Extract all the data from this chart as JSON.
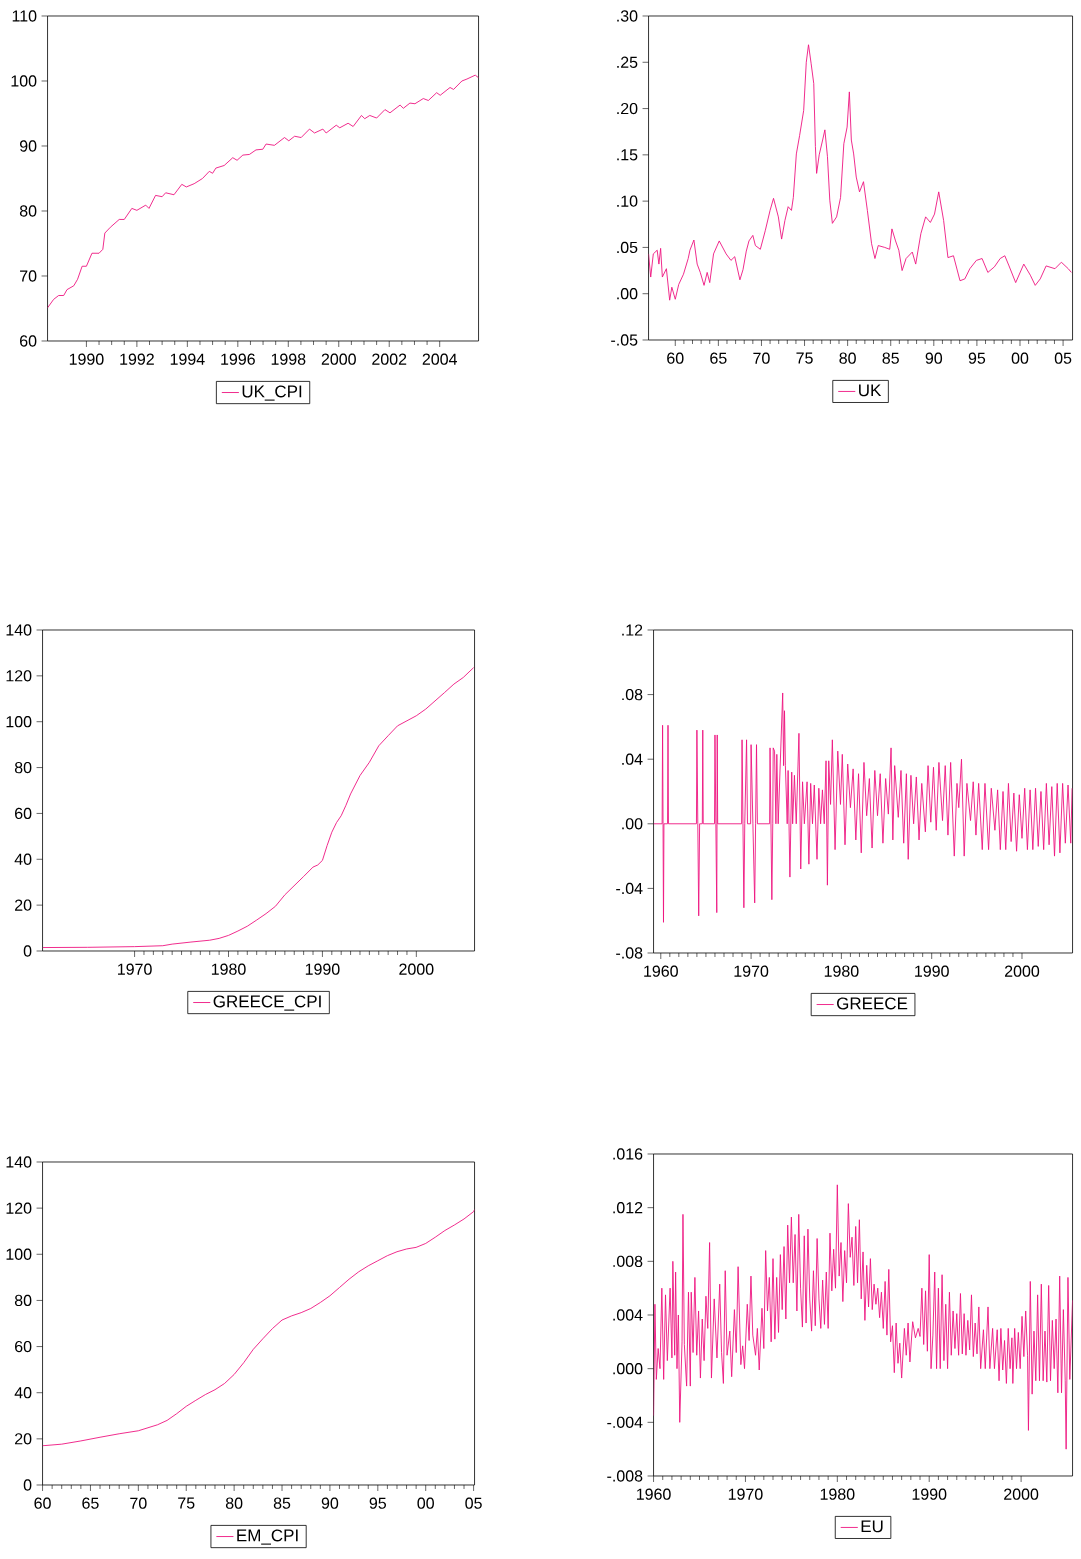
{
  "chart_data": [
    {
      "type": "line",
      "legend": "bottom",
      "line_style": "solid",
      "xlim": [
        1988.46,
        2005.54
      ],
      "xticks": [
        1990,
        1992,
        1994,
        1996,
        1998,
        2000,
        2002,
        2004
      ],
      "ylim": [
        60,
        110
      ],
      "yticks": [
        60,
        70,
        80,
        90,
        100,
        110
      ],
      "series": [
        {
          "name": "UK_CPI",
          "color": "#ee1580",
          "x": [
            1988.46,
            1988.7,
            1988.9,
            1989.1,
            1989.23,
            1989.5,
            1989.65,
            1989.83,
            1990.0,
            1990.22,
            1990.5,
            1990.65,
            1990.73,
            1990.95,
            1991.3,
            1991.5,
            1991.8,
            1992.0,
            1992.35,
            1992.48,
            1992.74,
            1993.0,
            1993.14,
            1993.47,
            1993.78,
            1993.96,
            1994.27,
            1994.6,
            1994.87,
            1995.0,
            1995.13,
            1995.46,
            1995.8,
            1995.97,
            1996.2,
            1996.46,
            1996.72,
            1996.99,
            1997.12,
            1997.45,
            1997.85,
            1998.02,
            1998.25,
            1998.51,
            1998.84,
            1999.04,
            1999.37,
            1999.5,
            1999.9,
            2000.04,
            2000.37,
            2000.57,
            2000.9,
            2001.03,
            2001.23,
            2001.5,
            2001.83,
            2002.03,
            2002.43,
            2002.56,
            2002.82,
            2003.02,
            2003.35,
            2003.55,
            2003.88,
            2004.02,
            2004.41,
            2004.55,
            2004.88,
            2005.08,
            2005.41,
            2005.54
          ],
          "values": [
            65.1,
            66.4,
            67.0,
            67.0,
            67.9,
            68.5,
            69.5,
            71.5,
            71.5,
            73.5,
            73.5,
            74.1,
            76.6,
            77.5,
            78.7,
            78.7,
            80.4,
            80.1,
            80.9,
            80.4,
            82.4,
            82.2,
            82.8,
            82.5,
            84.1,
            83.7,
            84.2,
            85.0,
            86.1,
            85.8,
            86.6,
            87.0,
            88.2,
            87.8,
            88.6,
            88.7,
            89.4,
            89.5,
            90.3,
            90.1,
            91.3,
            90.8,
            91.5,
            91.3,
            92.6,
            92.0,
            92.6,
            92.0,
            93.2,
            92.8,
            93.5,
            93.0,
            94.7,
            94.2,
            94.7,
            94.3,
            95.6,
            95.1,
            96.3,
            95.8,
            96.6,
            96.5,
            97.3,
            97.0,
            98.2,
            97.8,
            99.0,
            98.7,
            100.0,
            100.3,
            100.9,
            100.5
          ]
        }
      ]
    },
    {
      "type": "line",
      "legend": "bottom",
      "line_style": "solid",
      "xlim": [
        1956.9,
        2006.1
      ],
      "xticks": [
        {
          "value": 1960,
          "label": "60"
        },
        {
          "value": 1965,
          "label": "65"
        },
        {
          "value": 1970,
          "label": "70"
        },
        {
          "value": 1975,
          "label": "75"
        },
        {
          "value": 1980,
          "label": "80"
        },
        {
          "value": 1985,
          "label": "85"
        },
        {
          "value": 1990,
          "label": "90"
        },
        {
          "value": 1995,
          "label": "95"
        },
        {
          "value": 2000,
          "label": "00"
        },
        {
          "value": 2005,
          "label": "05"
        }
      ],
      "ylim": [
        -0.05,
        0.3
      ],
      "yticks": [
        {
          "value": -0.05,
          "label": "-.05"
        },
        {
          "value": 0,
          "label": ".00"
        },
        {
          "value": 0.05,
          "label": ".05"
        },
        {
          "value": 0.1,
          "label": ".10"
        },
        {
          "value": 0.15,
          "label": ".15"
        },
        {
          "value": 0.2,
          "label": ".20"
        },
        {
          "value": 0.25,
          "label": ".25"
        },
        {
          "value": 0.3,
          "label": ".30"
        }
      ],
      "series": [
        {
          "name": "UK",
          "color": "#ee1580",
          "x": [
            1956.9,
            1957.15,
            1957.45,
            1957.9,
            1958.1,
            1958.3,
            1958.5,
            1958.97,
            1959.35,
            1959.6,
            1960.0,
            1960.4,
            1960.95,
            1961.5,
            1961.7,
            1962.16,
            1962.54,
            1962.9,
            1963.34,
            1963.7,
            1964.0,
            1964.44,
            1965.1,
            1965.9,
            1966.46,
            1966.9,
            1967.5,
            1967.86,
            1968.24,
            1968.55,
            1969.0,
            1969.3,
            1969.87,
            1970.44,
            1971.0,
            1971.4,
            1971.96,
            1972.34,
            1972.72,
            1973.1,
            1973.48,
            1973.7,
            1974.05,
            1974.43,
            1974.9,
            1975.2,
            1975.46,
            1975.76,
            1976.07,
            1976.26,
            1976.4,
            1976.7,
            1977.1,
            1977.36,
            1977.66,
            1977.93,
            1978.23,
            1978.72,
            1979.18,
            1979.56,
            1979.94,
            1980.2,
            1980.43,
            1980.7,
            1981.0,
            1981.38,
            1981.84,
            1982.29,
            1982.78,
            1983.17,
            1983.55,
            1984.3,
            1984.88,
            1985.14,
            1985.56,
            1985.94,
            1986.32,
            1986.78,
            1987.5,
            1987.9,
            1988.5,
            1989.05,
            1989.6,
            1990.08,
            1990.57,
            1991.14,
            1991.64,
            1992.28,
            1993.04,
            1993.6,
            1994.18,
            1994.94,
            1995.6,
            1996.27,
            1997.03,
            1997.7,
            1998.24,
            1998.73,
            1999.5,
            2000.44,
            2001.2,
            2001.77,
            2002.35,
            2003.03,
            2004.06,
            2004.8,
            2005.6,
            2005.96
          ],
          "values": [
            0.043,
            0.018,
            0.043,
            0.047,
            0.032,
            0.049,
            0.018,
            0.027,
            -0.007,
            0.007,
            -0.006,
            0.01,
            0.021,
            0.038,
            0.047,
            0.058,
            0.032,
            0.023,
            0.009,
            0.023,
            0.012,
            0.043,
            0.057,
            0.043,
            0.036,
            0.04,
            0.015,
            0.026,
            0.046,
            0.057,
            0.063,
            0.052,
            0.048,
            0.068,
            0.09,
            0.103,
            0.083,
            0.059,
            0.079,
            0.094,
            0.09,
            0.104,
            0.151,
            0.171,
            0.198,
            0.25,
            0.269,
            0.249,
            0.227,
            0.159,
            0.13,
            0.15,
            0.166,
            0.177,
            0.148,
            0.101,
            0.076,
            0.083,
            0.104,
            0.162,
            0.18,
            0.218,
            0.166,
            0.151,
            0.126,
            0.11,
            0.121,
            0.09,
            0.054,
            0.038,
            0.052,
            0.05,
            0.048,
            0.07,
            0.057,
            0.047,
            0.025,
            0.038,
            0.045,
            0.032,
            0.065,
            0.083,
            0.077,
            0.086,
            0.11,
            0.079,
            0.039,
            0.041,
            0.014,
            0.016,
            0.027,
            0.036,
            0.038,
            0.023,
            0.029,
            0.038,
            0.041,
            0.03,
            0.012,
            0.032,
            0.02,
            0.009,
            0.016,
            0.03,
            0.027,
            0.034,
            0.027,
            0.023
          ]
        }
      ]
    },
    {
      "type": "line",
      "legend": "bottom",
      "line_style": "solid",
      "xlim": [
        1960.2,
        2006.2
      ],
      "xticks": [
        1970,
        1980,
        1990,
        2000
      ],
      "ylim": [
        0,
        140
      ],
      "yticks": [
        0,
        20,
        40,
        60,
        80,
        100,
        120,
        140
      ],
      "series": [
        {
          "name": "GREECE_CPI",
          "color": "#ee1580",
          "x": [
            1960.2,
            1965,
            1970,
            1973,
            1974,
            1976,
            1978,
            1979,
            1980,
            1981,
            1982,
            1983,
            1984,
            1985,
            1986,
            1987,
            1988,
            1989,
            1989.5,
            1990,
            1990.5,
            1991,
            1991.5,
            1992,
            1992.5,
            1993,
            1993.5,
            1994,
            1995,
            1996,
            1997,
            1998,
            1999,
            2000,
            2001,
            2002,
            2003,
            2004,
            2005,
            2006.1
          ],
          "values": [
            1.5,
            1.6,
            1.9,
            2.3,
            3.0,
            3.9,
            4.7,
            5.5,
            6.8,
            8.7,
            10.8,
            13.5,
            16.3,
            19.5,
            24.5,
            28.5,
            32.5,
            36.6,
            37.5,
            39.5,
            46,
            51.8,
            56,
            59,
            63.5,
            68.5,
            72.5,
            76.5,
            82.3,
            89.5,
            93.9,
            98.2,
            100.4,
            102.6,
            105.5,
            109.1,
            112.7,
            116.4,
            119.3,
            123.6
          ]
        }
      ]
    },
    {
      "type": "line",
      "legend": "bottom",
      "line_style": "solid",
      "xlim": [
        1959.2,
        2005.6
      ],
      "xticks": [
        1960,
        1970,
        1980,
        1990,
        2000
      ],
      "ylim": [
        -0.08,
        0.12
      ],
      "yticks": [
        {
          "value": -0.08,
          "label": "-.08"
        },
        {
          "value": -0.04,
          "label": "-.04"
        },
        {
          "value": 0,
          "label": ".00"
        },
        {
          "value": 0.04,
          "label": ".04"
        },
        {
          "value": 0.08,
          "label": ".08"
        },
        {
          "value": 0.12,
          "label": ".12"
        }
      ],
      "series": [
        {
          "name": "GREECE",
          "color": "#ee1580",
          "x": [
            1959.2,
            1960.15,
            1960.2,
            1960.25,
            1960.3,
            1960.35,
            1960.75,
            1960.8,
            1960.85,
            1963.95,
            1964.0,
            1964.1,
            1964.2,
            1964.3,
            1964.6,
            1964.65,
            1964.7,
            1965.95,
            1966.0,
            1966.1,
            1966.2,
            1966.25,
            1966.3,
            1968.95,
            1969.0,
            1969.1,
            1969.2,
            1969.3,
            1969.5,
            1969.6,
            1969.95,
            1970.0,
            1970.2,
            1970.4,
            1970.5,
            1970.6,
            1970.7,
            1972.05,
            1972.1,
            1972.2,
            1972.3,
            1972.4,
            1972.45,
            1972.6,
            1972.75,
            1972.85,
            1973.0,
            1973.5,
            1973.6,
            1973.7,
            1973.8,
            1974.0,
            1974.1,
            1974.3,
            1974.5,
            1974.6,
            1974.8,
            1975.0,
            1975.3,
            1975.5,
            1975.7,
            1975.9,
            1976.2,
            1976.4,
            1976.6,
            1976.8,
            1977.0,
            1977.3,
            1977.5,
            1977.7,
            1977.9,
            1978.1,
            1978.3,
            1978.45,
            1978.6,
            1978.8,
            1979.0,
            1979.3,
            1979.6,
            1979.9,
            1980.1,
            1980.4,
            1980.7,
            1981.0,
            1981.3,
            1981.6,
            1981.9,
            1982.2,
            1982.5,
            1982.8,
            1983.1,
            1983.4,
            1983.7,
            1984.0,
            1984.3,
            1984.6,
            1984.9,
            1985.2,
            1985.5,
            1985.7,
            1985.9,
            1986.3,
            1986.6,
            1986.9,
            1987.2,
            1987.4,
            1987.7,
            1988.0,
            1988.3,
            1988.6,
            1988.9,
            1989.3,
            1989.6,
            1989.9,
            1990.2,
            1990.5,
            1990.8,
            1991.2,
            1991.5,
            1991.8,
            1992.1,
            1992.5,
            1992.8,
            1993.0,
            1993.3,
            1993.6,
            1993.9,
            1994.3,
            1994.6,
            1994.9,
            1995.2,
            1995.6,
            1995.9,
            1996.3,
            1996.6,
            1997.0,
            1997.3,
            1997.6,
            1997.9,
            1998.2,
            1998.5,
            1998.8,
            1999.1,
            1999.4,
            1999.7,
            2000.0,
            2000.3,
            2000.6,
            2000.9,
            2001.2,
            2001.5,
            2001.8,
            2002.1,
            2002.4,
            2002.7,
            2003.0,
            2003.3,
            2003.6,
            2003.9,
            2004.2,
            2004.5,
            2004.8,
            2005.1,
            2005.4,
            2005.55
          ],
          "values": [
            0,
            0,
            0.061,
            0,
            -0.061,
            0,
            0,
            0.061,
            0,
            0,
            0.058,
            0,
            -0.057,
            0,
            0,
            0.058,
            0,
            0,
            0.055,
            0,
            -0.055,
            0.055,
            0,
            0,
            0.052,
            0,
            -0.052,
            0,
            0.052,
            0,
            0,
            0.049,
            0,
            -0.049,
            0,
            0.049,
            0,
            0,
            0.047,
            0,
            -0.047,
            0,
            0.047,
            0.045,
            0,
            0.043,
            0,
            0.081,
            0.036,
            0.07,
            0.036,
            0,
            0.033,
            -0.033,
            0.032,
            0,
            0.03,
            0,
            0.056,
            -0.028,
            0.026,
            0,
            0.026,
            -0.025,
            0.025,
            0,
            0.024,
            -0.022,
            0.022,
            0,
            0.021,
            0,
            0.039,
            -0.038,
            0.039,
            0.012,
            0.052,
            -0.016,
            0.045,
            0.012,
            0.043,
            -0.013,
            0.037,
            0.01,
            0.034,
            -0.01,
            0.031,
            -0.018,
            0.038,
            0.005,
            0.028,
            -0.015,
            0.033,
            0.005,
            0.031,
            -0.012,
            0.028,
            0.006,
            0.047,
            -0.01,
            0.036,
            0.004,
            0.033,
            -0.012,
            0.031,
            -0.022,
            0.03,
            0,
            0.029,
            -0.01,
            0.025,
            -0.005,
            0.036,
            0.001,
            0.035,
            -0.004,
            0.038,
            0.002,
            0.036,
            -0.007,
            0.038,
            -0.02,
            0.025,
            0.01,
            0.04,
            -0.02,
            0.025,
            0.002,
            0.026,
            -0.007,
            0.025,
            -0.016,
            0.025,
            -0.016,
            0.022,
            -0.004,
            0.021,
            -0.016,
            0.02,
            -0.016,
            0.025,
            -0.011,
            0.019,
            -0.017,
            0.018,
            -0.009,
            0.022,
            -0.016,
            0.021,
            -0.016,
            0.022,
            -0.014,
            0.02,
            -0.016,
            0.025,
            -0.013,
            0.023,
            -0.02,
            0.025,
            -0.018,
            0.025,
            -0.012,
            0.024,
            -0.012,
            0.022
          ]
        }
      ]
    },
    {
      "type": "line",
      "legend": "bottom",
      "line_style": "solid",
      "xlim": [
        1960,
        2005.1
      ],
      "xticks": [
        {
          "value": 1960,
          "label": "60"
        },
        {
          "value": 1965,
          "label": "65"
        },
        {
          "value": 1970,
          "label": "70"
        },
        {
          "value": 1975,
          "label": "75"
        },
        {
          "value": 1980,
          "label": "80"
        },
        {
          "value": 1985,
          "label": "85"
        },
        {
          "value": 1990,
          "label": "90"
        },
        {
          "value": 1995,
          "label": "95"
        },
        {
          "value": 2000,
          "label": "00"
        },
        {
          "value": 2005,
          "label": "05"
        }
      ],
      "ylim": [
        0,
        140
      ],
      "yticks": [
        0,
        20,
        40,
        60,
        80,
        100,
        120,
        140
      ],
      "series": [
        {
          "name": "EM_CPI",
          "color": "#ee1580",
          "x": [
            1960,
            1962,
            1964,
            1966,
            1968,
            1970,
            1972,
            1973,
            1974,
            1975,
            1976,
            1977,
            1978,
            1979,
            1980,
            1981,
            1982,
            1983,
            1984,
            1985,
            1986,
            1987,
            1988,
            1989,
            1990,
            1991,
            1992,
            1993,
            1994,
            1995,
            1996,
            1997,
            1998,
            1999,
            2000,
            2001,
            2002,
            2003,
            2004,
            2005,
            2005.1
          ],
          "values": [
            17.0,
            17.7,
            19.1,
            20.7,
            22.2,
            23.5,
            26.1,
            28.0,
            30.9,
            34.1,
            36.7,
            39.2,
            41.3,
            44.0,
            47.9,
            53.0,
            58.8,
            63.4,
            67.8,
            71.5,
            73.3,
            74.7,
            76.5,
            79.1,
            82.0,
            85.6,
            89.2,
            92.4,
            95.0,
            97.2,
            99.4,
            101.1,
            102.3,
            103.0,
            104.7,
            107.4,
            110.3,
            112.7,
            115.3,
            118.5,
            119.4
          ]
        }
      ]
    },
    {
      "type": "line",
      "legend": "bottom",
      "line_style": "solid",
      "xlim": [
        1960,
        2005.6
      ],
      "xticks": [
        1960,
        1970,
        1980,
        1990,
        2000
      ],
      "ylim": [
        -0.008,
        0.016
      ],
      "yticks": [
        {
          "value": -0.008,
          "label": "-.008"
        },
        {
          "value": -0.004,
          "label": "-.004"
        },
        {
          "value": 0,
          "label": ".000"
        },
        {
          "value": 0.004,
          "label": ".004"
        },
        {
          "value": 0.008,
          "label": ".008"
        },
        {
          "value": 0.012,
          "label": ".012"
        },
        {
          "value": 0.016,
          "label": ".016"
        }
      ],
      "series": [
        {
          "name": "EU",
          "color": "#ee1580",
          "x": [
            1960.0,
            1960.15,
            1960.3,
            1960.5,
            1960.7,
            1960.9,
            1961.1,
            1961.3,
            1961.5,
            1961.8,
            1962.0,
            1962.1,
            1962.3,
            1962.4,
            1962.55,
            1962.7,
            1962.85,
            1963.1,
            1963.2,
            1963.35,
            1963.6,
            1963.8,
            1964.0,
            1964.1,
            1964.3,
            1964.5,
            1964.7,
            1964.9,
            1965.1,
            1965.3,
            1965.5,
            1965.7,
            1965.9,
            1966.1,
            1966.3,
            1966.6,
            1966.9,
            1967.2,
            1967.4,
            1967.6,
            1967.8,
            1968.0,
            1968.3,
            1968.5,
            1968.8,
            1969.0,
            1969.2,
            1969.5,
            1969.7,
            1969.9,
            1970.2,
            1970.4,
            1970.6,
            1970.8,
            1971.1,
            1971.3,
            1971.5,
            1971.8,
            1972.0,
            1972.2,
            1972.4,
            1972.6,
            1972.8,
            1973.0,
            1973.2,
            1973.4,
            1973.6,
            1973.8,
            1974.0,
            1974.2,
            1974.4,
            1974.6,
            1974.8,
            1975.0,
            1975.2,
            1975.4,
            1975.6,
            1975.8,
            1976.0,
            1976.2,
            1976.4,
            1976.6,
            1976.8,
            1977.0,
            1977.2,
            1977.4,
            1977.6,
            1977.8,
            1978.0,
            1978.2,
            1978.4,
            1978.6,
            1978.8,
            1979.0,
            1979.2,
            1979.4,
            1979.6,
            1979.8,
            1980.0,
            1980.2,
            1980.4,
            1980.6,
            1980.8,
            1981.0,
            1981.2,
            1981.4,
            1981.6,
            1981.8,
            1982.0,
            1982.2,
            1982.4,
            1982.6,
            1982.8,
            1983.0,
            1983.2,
            1983.4,
            1983.6,
            1983.8,
            1984.0,
            1984.2,
            1984.4,
            1984.6,
            1984.8,
            1985.0,
            1985.2,
            1985.4,
            1985.6,
            1985.8,
            1986.0,
            1986.2,
            1986.4,
            1986.6,
            1986.8,
            1987.0,
            1987.3,
            1987.5,
            1987.7,
            1987.9,
            1988.2,
            1988.5,
            1988.8,
            1989.0,
            1989.2,
            1989.4,
            1989.6,
            1989.8,
            1990.0,
            1990.2,
            1990.4,
            1990.6,
            1990.8,
            1991.0,
            1991.2,
            1991.4,
            1991.6,
            1991.8,
            1992.0,
            1992.2,
            1992.4,
            1992.6,
            1992.8,
            1993.0,
            1993.2,
            1993.4,
            1993.6,
            1993.8,
            1994.0,
            1994.2,
            1994.4,
            1994.6,
            1994.8,
            1995.0,
            1995.2,
            1995.4,
            1995.6,
            1995.9,
            1996.1,
            1996.4,
            1996.6,
            1996.9,
            1997.1,
            1997.4,
            1997.6,
            1997.8,
            1998.0,
            1998.2,
            1998.4,
            1998.6,
            1998.8,
            1999.0,
            1999.1,
            1999.3,
            1999.5,
            1999.7,
            1999.9,
            2000.1,
            2000.3,
            2000.5,
            2000.7,
            2000.8,
            2001.0,
            2001.2,
            2001.4,
            2001.6,
            2001.8,
            2002.0,
            2002.2,
            2002.4,
            2002.6,
            2002.8,
            2003.0,
            2003.2,
            2003.4,
            2003.6,
            2003.8,
            2004.0,
            2004.2,
            2004.4,
            2004.6,
            2004.8,
            2004.9,
            2005.1,
            2005.3,
            2005.6
          ],
          "values": [
            -0.0035,
            0.0048,
            -0.0008,
            0.0015,
            0.0,
            0.006,
            -0.0008,
            0.0055,
            0.0006,
            0.006,
            0.0008,
            0.008,
            0.001,
            0.0072,
            0.0,
            0.004,
            -0.004,
            0.002,
            0.0115,
            0.0018,
            -0.0013,
            0.0057,
            -0.0013,
            0.0057,
            0.0012,
            0.0068,
            0.001,
            0.0043,
            -0.0007,
            0.0037,
            0.0006,
            0.0054,
            0.003,
            0.0094,
            -0.0007,
            0.0052,
            0.0008,
            0.0063,
            0.0012,
            -0.0011,
            0.0073,
            0.001,
            0.0028,
            -0.0006,
            0.0044,
            0.0012,
            0.0076,
            0.0003,
            0.0017,
            0.0,
            0.0048,
            0.0021,
            0.0069,
            0.0025,
            0.001,
            0.003,
            -0.0001,
            0.0045,
            0.0015,
            0.0088,
            0.0043,
            0.0068,
            0.002,
            0.0082,
            0.0022,
            0.0068,
            0.0027,
            0.0085,
            0.0044,
            0.0091,
            0.0037,
            0.0107,
            0.0064,
            0.0113,
            0.0064,
            0.01,
            0.0043,
            0.0115,
            0.006,
            0.0031,
            0.0099,
            0.0034,
            0.0104,
            0.0052,
            0.0028,
            0.0073,
            0.0032,
            0.0097,
            0.0052,
            0.003,
            0.0066,
            0.0033,
            0.0072,
            0.003,
            0.0101,
            0.0058,
            0.0089,
            0.006,
            0.0137,
            0.0069,
            0.0094,
            0.005,
            0.0088,
            0.0064,
            0.0123,
            0.0083,
            0.0098,
            0.0062,
            0.0106,
            0.0064,
            0.0111,
            0.0052,
            0.0087,
            0.0036,
            0.0077,
            0.0046,
            0.0082,
            0.0044,
            0.0063,
            0.0048,
            0.006,
            0.0038,
            0.0057,
            0.003,
            0.0065,
            0.0025,
            0.0074,
            0.002,
            0.0032,
            -0.0003,
            0.0034,
            0.0004,
            0.0019,
            -0.0007,
            0.003,
            0.001,
            0.0034,
            0.0005,
            0.0035,
            0.0023,
            0.003,
            0.0024,
            0.006,
            0.0018,
            0.0058,
            0.0013,
            0.0085,
            0.0,
            0.0025,
            0.0072,
            0.0,
            0.006,
            0.0,
            0.007,
            0.0006,
            0.0048,
            0.0,
            0.0057,
            0.001,
            0.0043,
            0.0015,
            0.0041,
            0.001,
            0.0056,
            0.0011,
            0.0041,
            0.001,
            0.0036,
            0.0014,
            0.0055,
            0.0009,
            0.0034,
            0.0011,
            0.0046,
            0.0,
            0.0029,
            0.0,
            0.0046,
            0.0,
            0.003,
            0.0,
            0.0029,
            -0.0009,
            0.003,
            -0.0001,
            0.0021,
            -0.0011,
            0.003,
            0.0,
            0.0023,
            -0.0011,
            0.003,
            0.0,
            0.0027,
            0.0,
            0.0039,
            0.0009,
            0.0043,
            0.001,
            -0.0046,
            0.0065,
            -0.0019,
            0.0028,
            -0.0009,
            0.0055,
            -0.0009,
            0.0063,
            -0.0009,
            0.0028,
            -0.001,
            0.0062,
            -0.0009,
            0.0036,
            0.0,
            0.0037,
            -0.0018,
            0.0069,
            -0.0018,
            0.0044,
            -0.0009,
            -0.006,
            0.0068,
            -0.0008,
            0.0051
          ]
        }
      ]
    }
  ]
}
